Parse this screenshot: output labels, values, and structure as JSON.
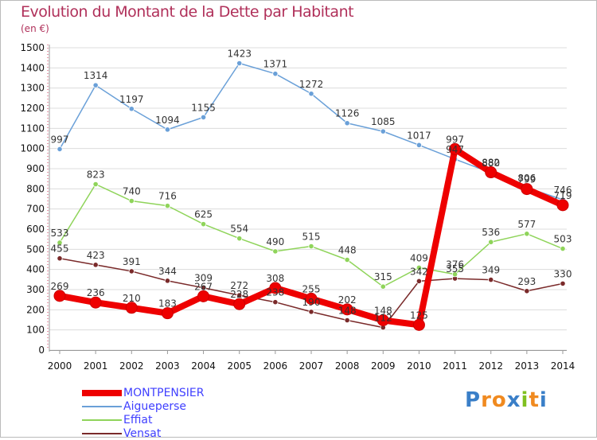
{
  "title": "Evolution du Montant de la Dette par Habitant",
  "unit": "(en €)",
  "brand": {
    "letters": [
      "P",
      "r",
      "o",
      "x",
      "i",
      "t",
      "i"
    ],
    "colors": [
      "#3a7fc8",
      "#f08a20",
      "#f08a20",
      "#3a7fc8",
      "#80c020",
      "#f08a20",
      "#3a7fc8"
    ]
  },
  "chart_data": {
    "type": "line",
    "x": [
      "2000",
      "2001",
      "2002",
      "2003",
      "2004",
      "2005",
      "2006",
      "2007",
      "2008",
      "2009",
      "2010",
      "2011",
      "2012",
      "2013",
      "2014"
    ],
    "ylim": [
      0,
      1500
    ],
    "yticks": [
      0,
      100,
      200,
      300,
      400,
      500,
      600,
      700,
      800,
      900,
      1000,
      1100,
      1200,
      1300,
      1400,
      1500
    ],
    "grid": "horizontal",
    "legend_position": "bottom-left",
    "series": [
      {
        "name": "Vensat",
        "color": "#7a2a2a",
        "values": [
          455,
          423,
          391,
          344,
          309,
          272,
          238,
          190,
          148,
          112,
          342,
          355,
          349,
          293,
          330
        ],
        "labels": [
          "455",
          "423",
          "391",
          "344",
          "309",
          "272",
          "238",
          "190",
          "148",
          "112",
          "342",
          "355",
          "349",
          "293",
          "330"
        ]
      },
      {
        "name": "Effiat",
        "color": "#8fd45a",
        "values": [
          533,
          823,
          740,
          716,
          625,
          554,
          490,
          515,
          448,
          315,
          409,
          376,
          536,
          577,
          503
        ],
        "labels": [
          "533",
          "823",
          "740",
          "716",
          "625",
          "554",
          "490",
          "515",
          "448",
          "315",
          "409",
          "376",
          "536",
          "577",
          "503"
        ]
      },
      {
        "name": "Aigueperse",
        "color": "#6aa0d8",
        "values": [
          997,
          1314,
          1197,
          1094,
          1155,
          1423,
          1371,
          1272,
          1126,
          1085,
          1017,
          947,
          880,
          806,
          746
        ],
        "labels": [
          "997",
          "1314",
          "1197",
          "1094",
          "1155",
          "1423",
          "1371",
          "1272",
          "1126",
          "1085",
          "1017",
          "947",
          "880",
          "806",
          "746"
        ]
      },
      {
        "name": "MONTPENSIER",
        "color": "#ee0000",
        "values": [
          269,
          236,
          210,
          183,
          267,
          228,
          308,
          255,
          202,
          148,
          125,
          997,
          882,
          799,
          719
        ],
        "labels": [
          "269",
          "236",
          "210",
          "183",
          "267",
          "228",
          "308",
          "255",
          "202",
          "148",
          "125",
          "997",
          "882",
          "799",
          "719"
        ]
      }
    ]
  },
  "legend": [
    {
      "label": "MONTPENSIER",
      "color": "#ee0000",
      "thickness": 8
    },
    {
      "label": "Aigueperse",
      "color": "#6aa0d8",
      "thickness": 2
    },
    {
      "label": "Effiat",
      "color": "#8fd45a",
      "thickness": 2
    },
    {
      "label": "Vensat",
      "color": "#7a2a2a",
      "thickness": 2
    }
  ]
}
